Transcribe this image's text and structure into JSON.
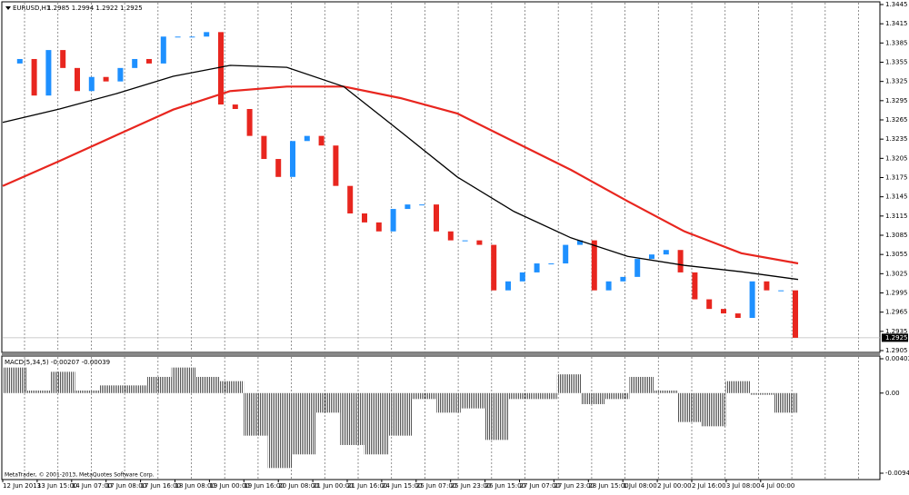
{
  "header": {
    "symbol": "EURUSD,H1",
    "ohlc": "1.2985 1.2994 1.2922 1.2925"
  },
  "price_axis": {
    "ylim": [
      1.2905,
      1.3445
    ],
    "ticks": [
      1.3445,
      1.3415,
      1.3385,
      1.3355,
      1.3325,
      1.3295,
      1.3265,
      1.3235,
      1.3205,
      1.3175,
      1.3145,
      1.3115,
      1.3085,
      1.3055,
      1.3025,
      1.2995,
      1.2965,
      1.2935,
      1.2905
    ],
    "current": 1.2925
  },
  "price": {
    "closes": [
      1.3353,
      1.336,
      1.3303,
      1.3374,
      1.3346,
      1.331,
      1.3332,
      1.3325,
      1.3346,
      1.336,
      1.3353,
      1.3395,
      1.3395,
      1.3395,
      1.3402,
      1.3289,
      1.3282,
      1.324,
      1.3204,
      1.3176,
      1.3232,
      1.324,
      1.3225,
      1.3162,
      1.3119,
      1.3105,
      1.3091,
      1.3126,
      1.3133,
      1.3133,
      1.3091,
      1.3077,
      1.3077,
      1.307,
      1.2999,
      1.3013,
      1.3027,
      1.3041,
      1.3041,
      1.307,
      1.3077,
      1.2999,
      1.3013,
      1.302,
      1.3048,
      1.3055,
      1.3062,
      1.3027,
      1.2985,
      1.297,
      1.2963,
      1.2956,
      1.3013,
      1.2999,
      1.2999,
      1.2925
    ],
    "ma_black": [
      1.3261,
      1.3282,
      1.3306,
      1.3333,
      1.335,
      1.3347,
      1.3317,
      1.3247,
      1.3176,
      1.3122,
      1.3081,
      1.3052,
      1.3038,
      1.3028,
      1.3016
    ],
    "ma_red": [
      1.3162,
      1.3201,
      1.3241,
      1.3281,
      1.331,
      1.3317,
      1.3317,
      1.3299,
      1.3275,
      1.3231,
      1.3187,
      1.3138,
      1.3091,
      1.3057,
      1.3041
    ]
  },
  "macd": {
    "label": "MACD(5,34,5) -0.00207 -0.00039",
    "ylim": [
      -0.00941,
      0.00403
    ],
    "ticks": [
      0.00403,
      {
        "value": 0,
        "label": "0.00"
      },
      -0.00941
    ],
    "histogram": [
      0.003,
      0.0003,
      0.0025,
      0.0003,
      0.0009,
      0.0009,
      0.0019,
      0.003,
      0.0019,
      0.0014,
      -0.005,
      -0.0088,
      -0.0072,
      -0.0023,
      -0.0061,
      -0.0072,
      -0.005,
      -0.0007,
      -0.0023,
      -0.0018,
      -0.0055,
      -0.0007,
      -0.0007,
      0.0022,
      -0.0013,
      -0.0007,
      0.0019,
      0.0003,
      -0.0034,
      -0.0039,
      0.0014,
      -0.0002,
      -0.0023
    ]
  },
  "time_labels": [
    "12 Jun 2013",
    "13 Jun 15:00",
    "14 Jun 07:00",
    "17 Jun 08:00",
    "17 Jun 16:00",
    "18 Jun 08:00",
    "19 Jun 00:00",
    "19 Jun 16:00",
    "20 Jun 08:00",
    "21 Jun 00:00",
    "21 Jun 16:00",
    "24 Jun 15:00",
    "25 Jun 07:00",
    "25 Jun 23:00",
    "26 Jun 15:00",
    "27 Jun 07:00",
    "27 Jun 23:00",
    "28 Jun 15:00",
    "1 Jul 08:00",
    "2 Jul 00:00",
    "2 Jul 16:00",
    "3 Jul 08:00",
    "4 Jul 00:00"
  ],
  "footer": "MetaTrader, © 2001-2013, MetaQuotes Software Corp."
}
